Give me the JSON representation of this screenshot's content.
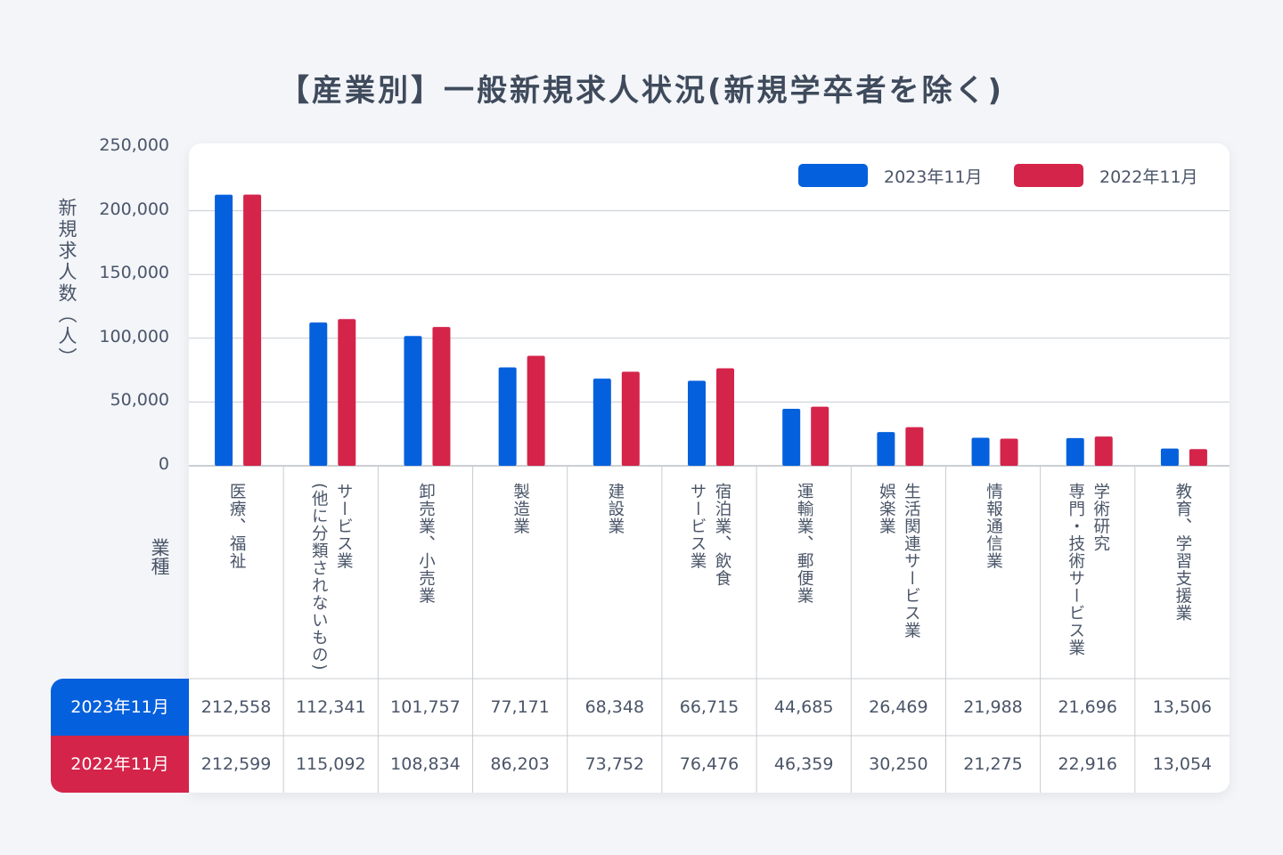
{
  "title": "【産業別】一般新規求人状況(新規学卒者を除く)",
  "chart_data": {
    "type": "bar",
    "title": "【産業別】一般新規求人状況(新規学卒者を除く)",
    "ylabel": "新規求人数（人）",
    "xlabel": "業種",
    "ylim": [
      0,
      250000
    ],
    "yticks": [
      "250,000",
      "200,000",
      "150,000",
      "100,000",
      "50,000",
      "0"
    ],
    "ytick_values": [
      250000,
      200000,
      150000,
      100000,
      50000,
      0
    ],
    "grid": true,
    "legend_position": "top-right",
    "categories": [
      "医療、福祉",
      "サービス業\n(他に分類されないもの)",
      "卸売業、小売業",
      "製造業",
      "建設業",
      "宿泊業、飲食\nサービス業",
      "運輸業、郵便業",
      "生活関連サービス業\n娯楽業",
      "情報通信業",
      "学術研究\n専門・技術サービス業",
      "教育、学習支援業"
    ],
    "series": [
      {
        "name": "2023年11月",
        "color": "#0560dd",
        "values": [
          212558,
          112341,
          101757,
          77171,
          68348,
          66715,
          44685,
          26469,
          21988,
          21696,
          13506
        ],
        "labels": [
          "212,558",
          "112,341",
          "101,757",
          "77,171",
          "68,348",
          "66,715",
          "44,685",
          "26,469",
          "21,988",
          "21,696",
          "13,506"
        ]
      },
      {
        "name": "2022年11月",
        "color": "#d4244a",
        "values": [
          212599,
          115092,
          108834,
          86203,
          73752,
          76476,
          46359,
          30250,
          21275,
          22916,
          13054
        ],
        "labels": [
          "212,599",
          "115,092",
          "108,834",
          "86,203",
          "73,752",
          "76,476",
          "46,359",
          "30,250",
          "21,275",
          "22,916",
          "13,054"
        ]
      }
    ]
  }
}
